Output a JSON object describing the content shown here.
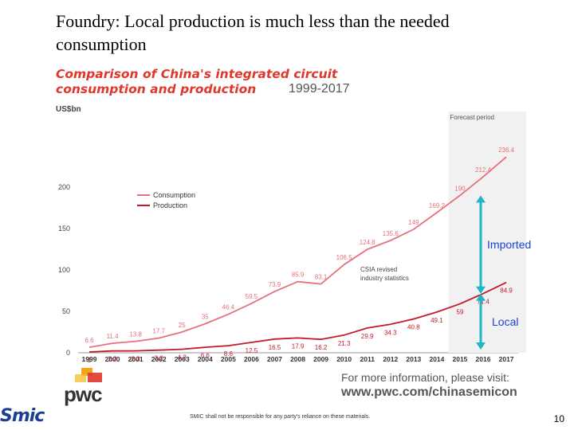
{
  "slide": {
    "title": "Foundry: Local production is much less than the needed consumption",
    "page_number": "10",
    "disclaimer": "SMIC shall not be responsible for any party's reliance on these materials.",
    "smic_logo": "Smic"
  },
  "chart_heading": {
    "line1": "Comparison of China's integrated circuit",
    "line2": "consumption and production",
    "years": "1999-2017"
  },
  "pwc": {
    "logo_text": "pwc",
    "more_info": "For more information, please visit:",
    "url": "www.pwc.com/chinasemicon"
  },
  "chart_data": {
    "type": "line",
    "unit": "US$bn",
    "ylim": [
      0,
      200
    ],
    "yticks": [
      0,
      50,
      100,
      150,
      200
    ],
    "x": [
      "1999",
      "2000",
      "2001",
      "2002",
      "2003",
      "2004",
      "2005",
      "2006",
      "2007",
      "2008",
      "2009",
      "2010",
      "2011",
      "2012",
      "2013",
      "2014",
      "2015",
      "2016",
      "2017"
    ],
    "series": [
      {
        "name": "Consumption",
        "color": "#e8707a",
        "values": [
          6.6,
          11.4,
          13.8,
          17.7,
          25,
          35,
          46.4,
          59.5,
          73.9,
          85.9,
          83.1,
          106.5,
          124.8,
          135.6,
          149,
          169.2,
          190,
          212.4,
          236.4
        ],
        "labels": [
          "6.6",
          "11.4",
          "13.8",
          "17.7",
          "25",
          "35",
          "46.4",
          "59.5",
          "73.9",
          "85.9",
          "83.1",
          "106.5",
          "124.8",
          "135.6",
          "149",
          "169.2",
          "190",
          "212.4",
          "236.4"
        ]
      },
      {
        "name": "Production",
        "color": "#c41a28",
        "values": [
          1,
          2.2,
          2.3,
          3.2,
          4.2,
          6.6,
          8.6,
          12.5,
          16.5,
          17.9,
          16.2,
          21.3,
          29.9,
          34.3,
          40.8,
          49.1,
          59,
          71.4,
          84.9
        ],
        "labels": [
          "1",
          "2.2",
          "2.3",
          "3.2",
          "4.2",
          "6.6",
          "8.6",
          "12.5",
          "16.5",
          "17.9",
          "16.2",
          "21.3",
          "29.9",
          "34.3",
          "40.8",
          "49.1",
          "59",
          "71.4",
          "84.9"
        ]
      }
    ],
    "forecast_label": "Forecast period",
    "forecast_from": "2014",
    "csia_note": "CSIA revised industry statistics",
    "legend_position": "middle-left",
    "annotations": [
      {
        "text": "Imported",
        "color": "#1a44d8"
      },
      {
        "text": "Local",
        "color": "#1a44d8"
      }
    ],
    "arrow_color": "#1fb7c8"
  }
}
